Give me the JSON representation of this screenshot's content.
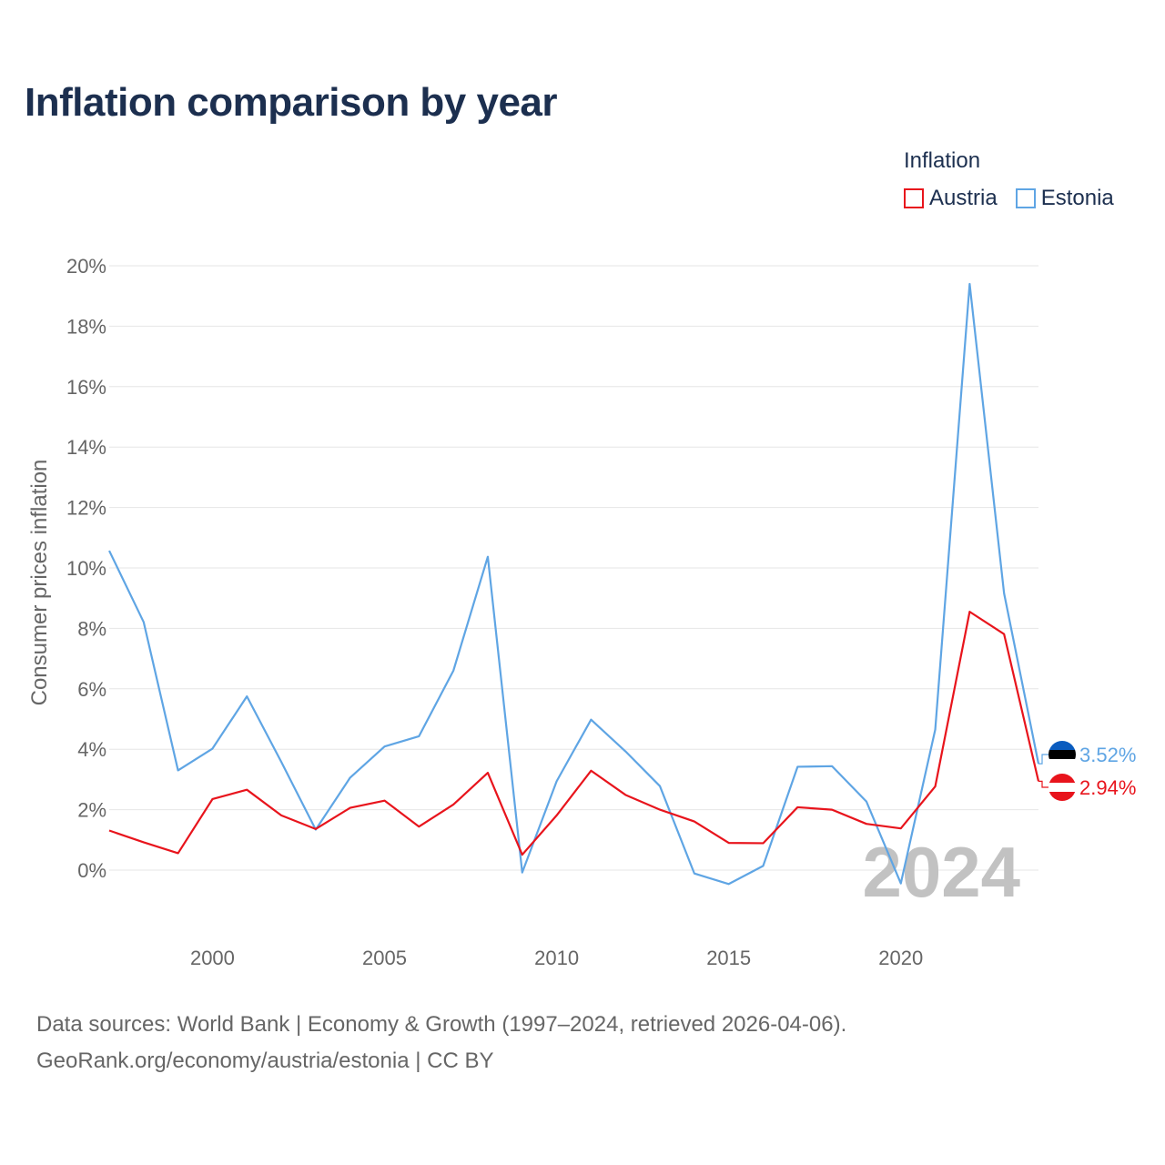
{
  "title": "Inflation comparison by year",
  "legend": {
    "title": "Inflation",
    "items": [
      {
        "label": "Austria",
        "color": "#e8141c"
      },
      {
        "label": "Estonia",
        "color": "#5fa5e4"
      }
    ]
  },
  "footer": {
    "line1": "Data sources: World Bank | Economy & Growth (1997–2024, retrieved 2026-04-06).",
    "line2": "GeoRank.org/economy/austria/estonia | CC BY"
  },
  "chart_data": {
    "type": "line",
    "title": "Inflation comparison by year",
    "xlabel": "",
    "ylabel": "Consumer prices inflation",
    "watermark_year": "2024",
    "xlim": [
      1997,
      2024
    ],
    "ylim": [
      -2,
      20
    ],
    "yticks": [
      0,
      2,
      4,
      6,
      8,
      10,
      12,
      14,
      16,
      18,
      20
    ],
    "ytick_labels": [
      "0%",
      "2%",
      "4%",
      "6%",
      "8%",
      "10%",
      "12%",
      "14%",
      "16%",
      "18%",
      "20%"
    ],
    "xticks": [
      2000,
      2005,
      2010,
      2015,
      2020
    ],
    "xtick_labels": [
      "2000",
      "2005",
      "2010",
      "2015",
      "2020"
    ],
    "grid": true,
    "legend_position": "top-right",
    "x": [
      1997,
      1998,
      1999,
      2000,
      2001,
      2002,
      2003,
      2004,
      2005,
      2006,
      2007,
      2008,
      2009,
      2010,
      2011,
      2012,
      2013,
      2014,
      2015,
      2016,
      2017,
      2018,
      2019,
      2020,
      2021,
      2022,
      2023,
      2024
    ],
    "series": [
      {
        "name": "Austria",
        "color": "#e8141c",
        "end_label": "2.94%",
        "values": [
          1.31,
          0.92,
          0.56,
          2.35,
          2.66,
          1.81,
          1.36,
          2.06,
          2.3,
          1.44,
          2.17,
          3.22,
          0.51,
          1.81,
          3.29,
          2.49,
          2.0,
          1.61,
          0.9,
          0.89,
          2.08,
          2.0,
          1.53,
          1.38,
          2.77,
          8.55,
          7.81,
          2.94
        ]
      },
      {
        "name": "Estonia",
        "color": "#5fa5e4",
        "end_label": "3.52%",
        "values": [
          10.57,
          8.21,
          3.3,
          4.02,
          5.75,
          3.58,
          1.34,
          3.06,
          4.09,
          4.43,
          6.6,
          10.37,
          -0.08,
          2.94,
          4.98,
          3.93,
          2.78,
          -0.11,
          -0.46,
          0.14,
          3.42,
          3.44,
          2.27,
          -0.44,
          4.65,
          19.4,
          9.16,
          3.52
        ]
      }
    ]
  }
}
